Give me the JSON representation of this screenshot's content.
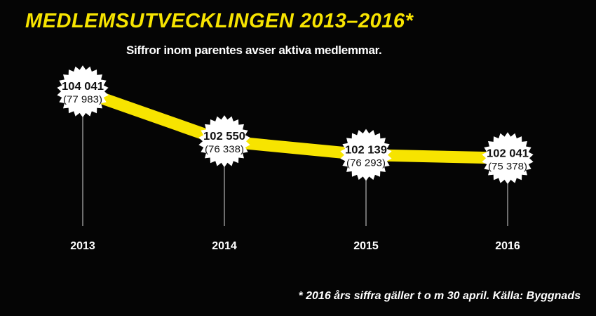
{
  "title": "MEDLEMSUTVECKLINGEN 2013–2016*",
  "subtitle": "Siffror inom parentes avser aktiva medlemmar.",
  "footnote": "* 2016 års siffra gäller t o m 30 april. Källa: Byggnads",
  "colors": {
    "accent": "#f7e400",
    "background": "#050505",
    "badge": "#ffffff",
    "text": "#ffffff",
    "badge_text": "#111111"
  },
  "chart_data": {
    "type": "line",
    "categories": [
      "2013",
      "2014",
      "2015",
      "2016"
    ],
    "series": [
      {
        "values": [
          104041,
          102550,
          102139,
          102041
        ],
        "value_labels": [
          "104 041",
          "102 550",
          "102 139",
          "102 041"
        ]
      },
      {
        "values": [
          77983,
          76338,
          76293,
          75378
        ],
        "value_labels": [
          "(77 983)",
          "(76 338)",
          "(76 293)",
          "(75 378)"
        ]
      }
    ],
    "title": "MEDLEMSUTVECKLINGEN 2013–2016*",
    "subtitle": "Siffror inom parentes avser aktiva medlemmar.",
    "xlabel": "",
    "ylabel": "",
    "grid": false,
    "legend": "none"
  }
}
